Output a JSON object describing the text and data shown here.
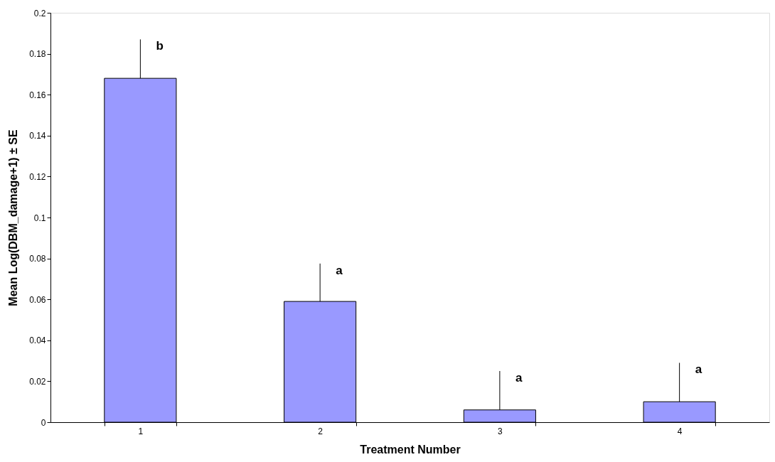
{
  "chart_data": {
    "type": "bar",
    "xlabel": "Treatment Number",
    "ylabel": "Mean Log(DBM_damage+1) ± SE",
    "categories": [
      "1",
      "2",
      "3",
      "4"
    ],
    "values": [
      0.168,
      0.059,
      0.006,
      0.01
    ],
    "errors": [
      [
        0.168,
        0.187
      ],
      [
        0.059,
        0.0775
      ],
      [
        0.006,
        0.025
      ],
      [
        0.01,
        0.029
      ]
    ],
    "color": "#9999ff",
    "ylim": [
      0,
      0.2
    ],
    "yticks": [
      0,
      0.02,
      0.04,
      0.06,
      0.08,
      0.1,
      0.12,
      0.14,
      0.16,
      0.18,
      0.2
    ],
    "grid": false,
    "annotations": [
      {
        "text": "b",
        "x": "1",
        "y": 0.187
      },
      {
        "text": "a",
        "x": "2",
        "y": 0.0775
      },
      {
        "text": "a",
        "x": "3",
        "y": 0.025
      },
      {
        "text": "a",
        "x": "4",
        "y": 0.029
      }
    ]
  }
}
